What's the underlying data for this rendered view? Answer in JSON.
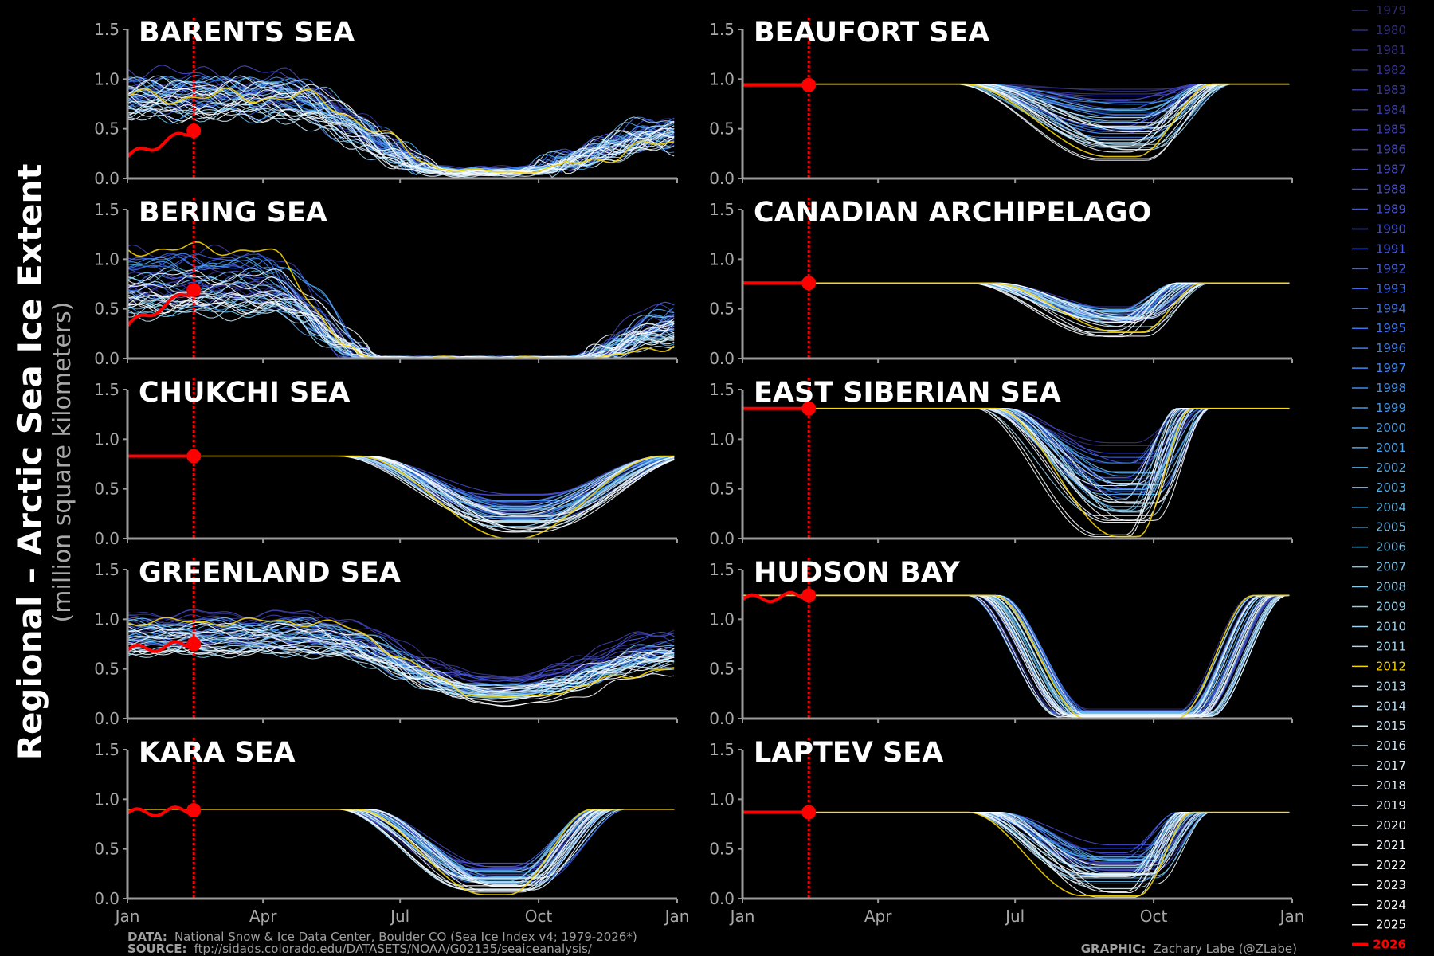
{
  "ylabel": "Regional – Arctic Sea Ice Extent",
  "ylabel_units": "(million square kilometers)",
  "footer": {
    "data_label": "DATA:",
    "data_text": "National Snow & Ice Data Center, Boulder CO (Sea Ice Index v4; 1979-2026*)",
    "source_label": "SOURCE:",
    "source_text": "ftp://sidads.colorado.edu/DATASETS/NOAA/G02135/seaiceanalysis/",
    "graphic_label": "GRAPHIC:",
    "graphic_text": "Zachary Labe (@ZLabe)"
  },
  "colors": {
    "background": "#000000",
    "axis": "#9a9a9a",
    "highlight_2012": "#f5d300",
    "current_2026": "#ff0000",
    "marker_line": "#ff0000"
  },
  "chart_data": {
    "type": "line",
    "xlim": [
      "Jan",
      "Jan"
    ],
    "xticks": [
      "Jan",
      "Apr",
      "Jul",
      "Oct",
      "Jan"
    ],
    "ylim": [
      0,
      1.5
    ],
    "yticks": [
      "0.0",
      "0.5",
      "1.0",
      "1.5"
    ],
    "grid": false,
    "current_day_of_year": 44,
    "current_year": "2026",
    "highlight_year": "2012",
    "legend_position": "right",
    "legend_years": [
      "1979",
      "1980",
      "1981",
      "1982",
      "1983",
      "1984",
      "1985",
      "1986",
      "1987",
      "1988",
      "1989",
      "1990",
      "1991",
      "1992",
      "1993",
      "1994",
      "1995",
      "1996",
      "1997",
      "1998",
      "1999",
      "2000",
      "2001",
      "2002",
      "2003",
      "2004",
      "2005",
      "2006",
      "2007",
      "2008",
      "2009",
      "2010",
      "2011",
      "2012",
      "2013",
      "2014",
      "2015",
      "2016",
      "2017",
      "2018",
      "2019",
      "2020",
      "2021",
      "2022",
      "2023",
      "2024",
      "2025",
      "2026"
    ],
    "legend_colors": [
      "#2d2a6e",
      "#302d78",
      "#333083",
      "#36348e",
      "#393899",
      "#3c3ca4",
      "#3f40ae",
      "#4244b8",
      "#4548c2",
      "#474ccb",
      "#4650d3",
      "#4455d9",
      "#425bde",
      "#4061e2",
      "#3e68e6",
      "#3c6fe9",
      "#3b76eb",
      "#3b7eec",
      "#3c86ed",
      "#3e8eed",
      "#4196ed",
      "#459eec",
      "#4aa5eb",
      "#50acea",
      "#57b2e9",
      "#5fb8e8",
      "#68bde8",
      "#72c2e8",
      "#7cc6e9",
      "#87cbea",
      "#92cfeb",
      "#9dd3ed",
      "#a8d7ee",
      "#f5d300",
      "#b4dbf0",
      "#bfdff2",
      "#c9e4f4",
      "#d3e8f6",
      "#dcecf8",
      "#e4f0f9",
      "#ebf4fb",
      "#f1f7fc",
      "#f5f9fd",
      "#f8fbfe",
      "#fafcfe",
      "#fcfdff",
      "#fdfeff",
      "#ff0000"
    ],
    "panels": [
      {
        "title": "BARENTS SEA",
        "min_low": 0.02,
        "min_high": 0.12,
        "max_low": 0.55,
        "max_high": 1.1,
        "melt_start": 100,
        "melt_end": 215,
        "freeze_start": 255,
        "freeze_end": 365,
        "end_frac": 0.6,
        "noise": 0.09,
        "y2012_mult": [
          0.5,
          0.5,
          0.6
        ],
        "current_start": 0.22,
        "current_value": 0.48
      },
      {
        "title": "BEAUFORT SEA",
        "min_low": 0.12,
        "min_high": 0.95,
        "max_low": 0.95,
        "max_high": 0.95,
        "melt_start": 150,
        "melt_end": 245,
        "freeze_start": 265,
        "freeze_end": 315,
        "end_frac": 1.0,
        "noise": 0.0,
        "y2012_mult": [
          1,
          0.12,
          1
        ],
        "current_start": 0.94,
        "current_value": 0.94
      },
      {
        "title": "BERING SEA",
        "min_low": 0.0,
        "min_high": 0.0,
        "max_low": 0.35,
        "max_high": 1.1,
        "melt_start": 90,
        "melt_end": 165,
        "freeze_start": 300,
        "freeze_end": 365,
        "end_frac": 0.55,
        "noise": 0.08,
        "y2012_mult": [
          1.0,
          0.0,
          0.5
        ],
        "current_start": 0.33,
        "current_value": 0.69
      },
      {
        "title": "CANADIAN ARCHIPELAGO",
        "min_low": 0.18,
        "min_high": 0.6,
        "max_low": 0.76,
        "max_high": 0.76,
        "melt_start": 160,
        "melt_end": 245,
        "freeze_start": 260,
        "freeze_end": 300,
        "end_frac": 1.0,
        "noise": 0.0,
        "y2012_mult": [
          1,
          0.2,
          1
        ],
        "current_start": 0.76,
        "current_value": 0.76
      },
      {
        "title": "CHUKCHI SEA",
        "min_low": 0.0,
        "min_high": 0.5,
        "max_low": 0.83,
        "max_high": 0.83,
        "melt_start": 150,
        "melt_end": 250,
        "freeze_start": 270,
        "freeze_end": 365,
        "end_frac": 1.0,
        "noise": 0.0,
        "y2012_mult": [
          1,
          0.0,
          1
        ],
        "current_start": 0.83,
        "current_value": 0.83
      },
      {
        "title": "EAST SIBERIAN SEA",
        "min_low": 0.0,
        "min_high": 1.0,
        "max_low": 1.31,
        "max_high": 1.31,
        "melt_start": 165,
        "melt_end": 245,
        "freeze_start": 265,
        "freeze_end": 300,
        "end_frac": 1.0,
        "noise": 0.0,
        "y2012_mult": [
          1,
          0.02,
          1
        ],
        "current_start": 1.31,
        "current_value": 1.31
      },
      {
        "title": "GREENLAND SEA",
        "min_low": 0.12,
        "min_high": 0.45,
        "max_low": 0.6,
        "max_high": 1.1,
        "melt_start": 120,
        "melt_end": 240,
        "freeze_start": 255,
        "freeze_end": 365,
        "end_frac": 0.85,
        "noise": 0.05,
        "y2012_mult": [
          0.75,
          0.3,
          0.65
        ],
        "current_start": 0.69,
        "current_value": 0.75
      },
      {
        "title": "HUDSON BAY",
        "min_low": 0.0,
        "min_high": 0.1,
        "max_low": 1.24,
        "max_high": 1.24,
        "melt_start": 160,
        "melt_end": 220,
        "freeze_start": 300,
        "freeze_end": 350,
        "end_frac": 1.0,
        "noise": 0.0,
        "y2012_mult": [
          1,
          0.0,
          1
        ],
        "current_start": 1.2,
        "current_value": 1.24
      },
      {
        "title": "KARA SEA",
        "min_low": 0.02,
        "min_high": 0.4,
        "max_low": 0.9,
        "max_high": 0.9,
        "melt_start": 150,
        "melt_end": 235,
        "freeze_start": 265,
        "freeze_end": 320,
        "end_frac": 1.0,
        "noise": 0.0,
        "y2012_mult": [
          1,
          0.05,
          0.8
        ],
        "current_start": 0.86,
        "current_value": 0.89
      },
      {
        "title": "LAPTEV SEA",
        "min_low": 0.0,
        "min_high": 0.6,
        "max_low": 0.87,
        "max_high": 0.87,
        "melt_start": 160,
        "melt_end": 235,
        "freeze_start": 265,
        "freeze_end": 300,
        "end_frac": 1.0,
        "noise": 0.0,
        "y2012_mult": [
          1,
          0.05,
          1
        ],
        "current_start": 0.87,
        "current_value": 0.87
      }
    ]
  }
}
